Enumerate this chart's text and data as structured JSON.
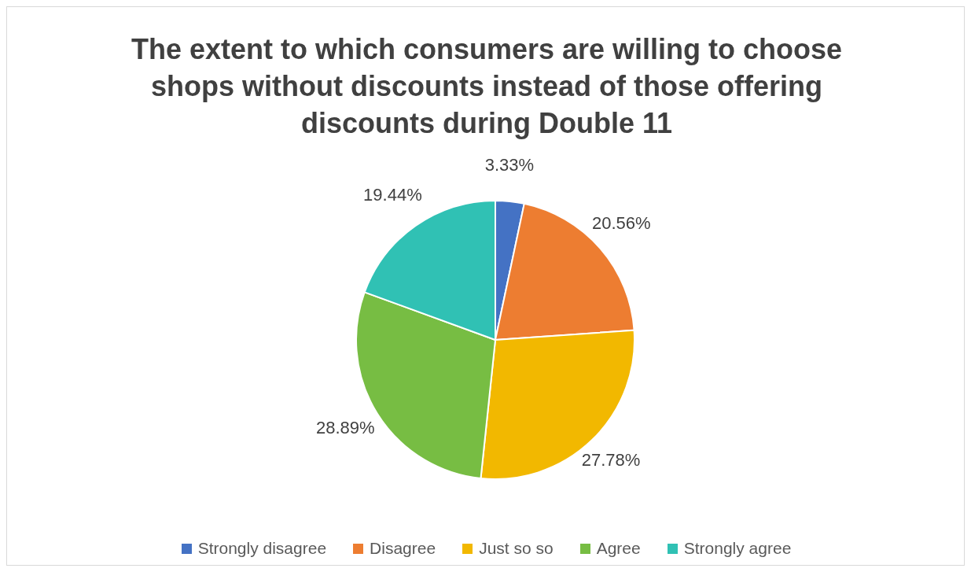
{
  "chart_data": {
    "type": "pie",
    "title": "The extent to which consumers are willing to choose shops without discounts instead of those offering discounts during Double 11",
    "categories": [
      "Strongly disagree",
      "Disagree",
      "Just so so",
      "Agree",
      "Strongly agree"
    ],
    "values": [
      3.33,
      20.56,
      27.78,
      28.89,
      19.44
    ],
    "value_labels": [
      "3.33%",
      "20.56%",
      "27.78%",
      "28.89%",
      "19.44%"
    ],
    "colors": [
      "#4472c4",
      "#ed7d31",
      "#f2b800",
      "#77bd43",
      "#30c1b4"
    ],
    "legend": "bottom"
  }
}
